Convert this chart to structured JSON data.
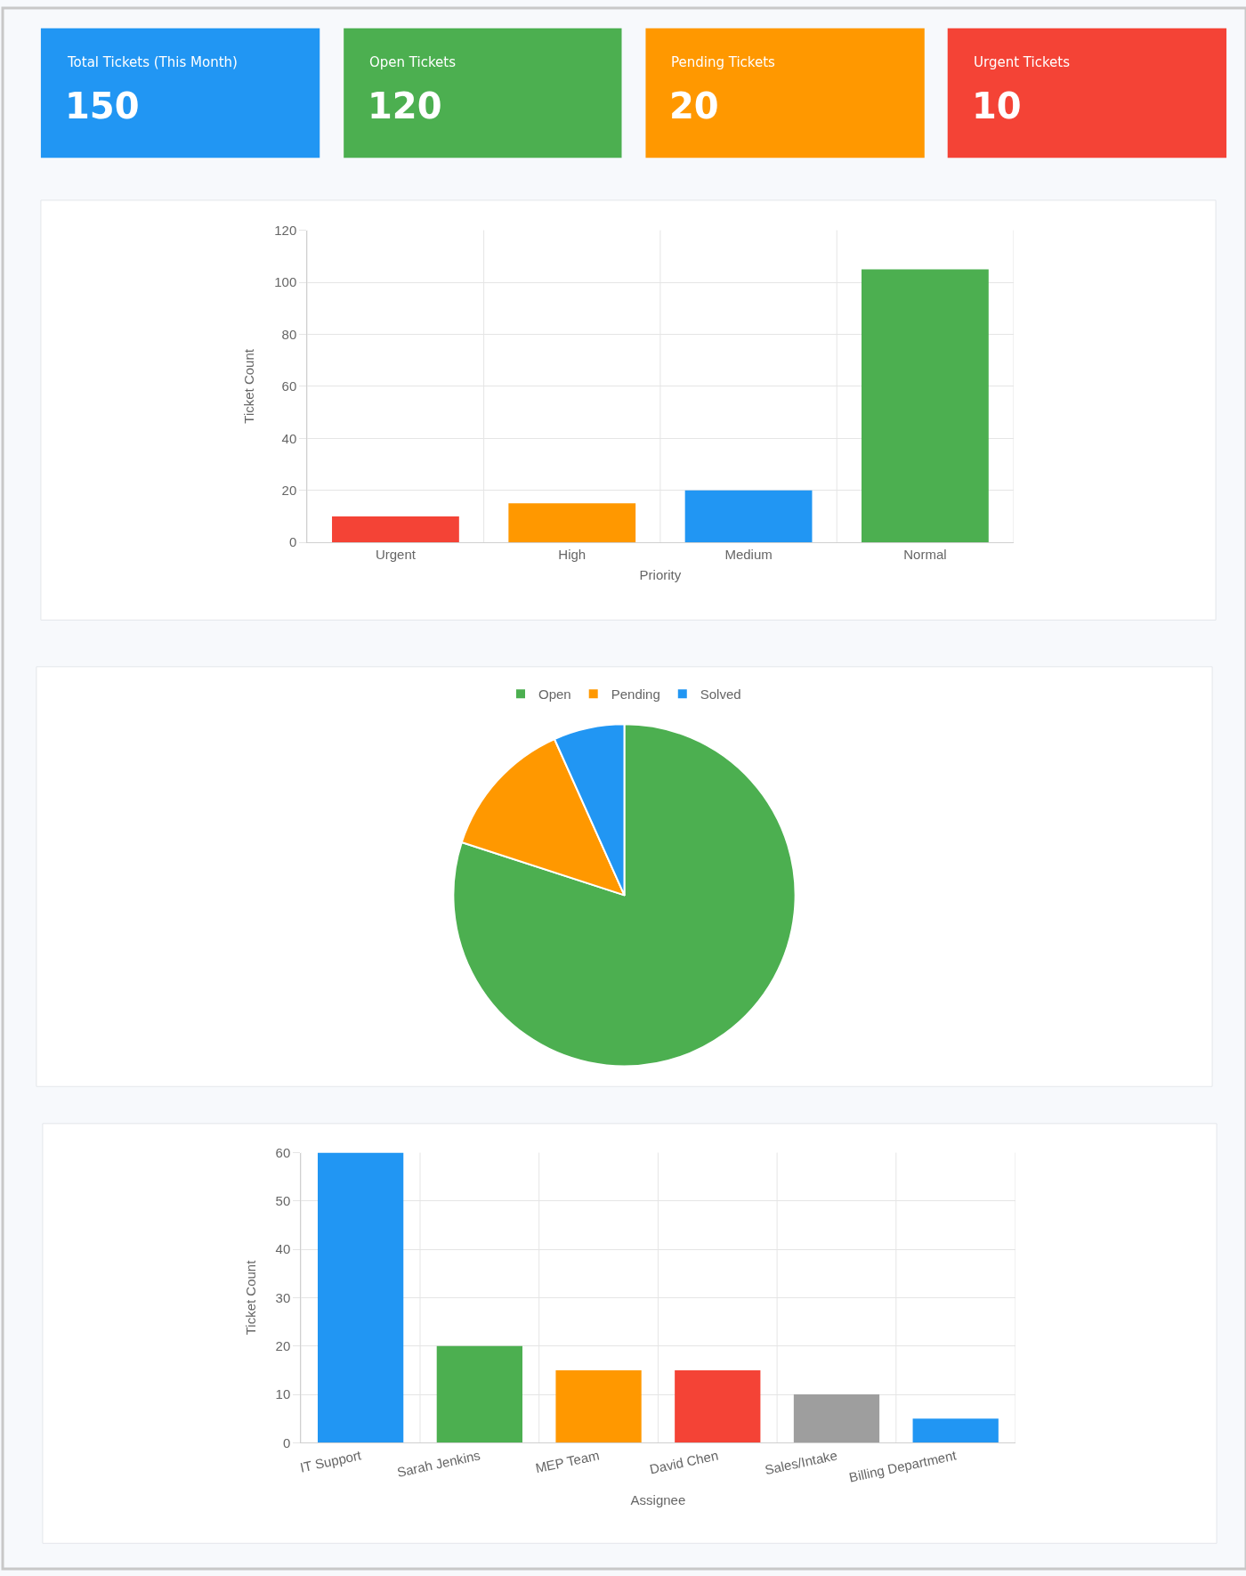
{
  "chart_data": [
    {
      "type": "other",
      "categories": [
        "Total Tickets (This Month)",
        "Open Tickets",
        "Pending Tickets",
        "Urgent Tickets"
      ],
      "values": [
        150,
        120,
        20,
        10
      ],
      "colors": [
        "#2196f3",
        "#4caf50",
        "#ff9800",
        "#f44336"
      ],
      "data_labels": true
    },
    {
      "type": "bar",
      "categories": [
        "Urgent",
        "High",
        "Medium",
        "Normal"
      ],
      "values": [
        10,
        15,
        20,
        105
      ],
      "colors": [
        "#f44336",
        "#ff9800",
        "#2196f3",
        "#4caf50"
      ],
      "xlabel": "Priority",
      "ylabel": "Ticket Count",
      "ylim": [
        0,
        120
      ],
      "yticks": [
        0,
        20,
        40,
        60,
        80,
        100,
        120
      ],
      "grid": true
    },
    {
      "type": "pie",
      "categories": [
        "Open",
        "Pending",
        "Solved"
      ],
      "values": [
        80,
        13.3,
        6.7
      ],
      "colors": [
        "#4caf50",
        "#ff9800",
        "#2196f3"
      ],
      "legend": "top"
    },
    {
      "type": "bar",
      "categories": [
        "IT Support",
        "Sarah Jenkins",
        "MEP Team",
        "David Chen",
        "Sales/Intake",
        "Billing Department"
      ],
      "values": [
        60,
        20,
        15,
        15,
        10,
        5
      ],
      "colors": [
        "#2196f3",
        "#4caf50",
        "#ff9800",
        "#f44336",
        "#9e9e9e",
        "#2196f3"
      ],
      "xlabel": "Assignee",
      "ylabel": "Ticket Count",
      "ylim": [
        0,
        60
      ],
      "yticks": [
        0,
        10,
        20,
        30,
        40,
        50,
        60
      ],
      "grid": true
    }
  ]
}
